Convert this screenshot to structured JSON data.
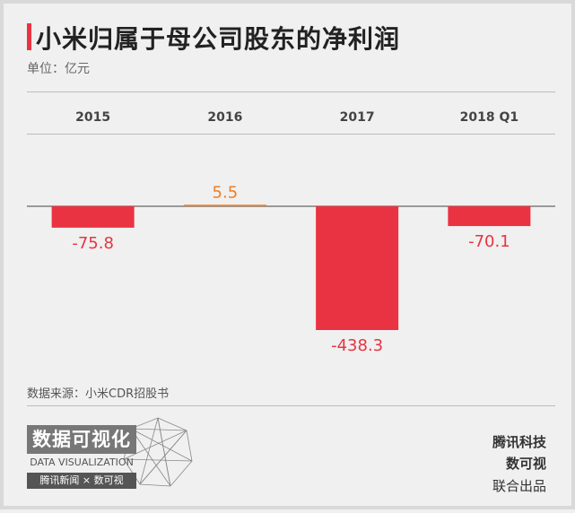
{
  "title": "小米归属于母公司股东的净利润",
  "unit": "单位：亿元",
  "source": "数据来源：小米CDR招股书",
  "brand": {
    "logo_main": "数据可视化",
    "logo_en": "DATA VISUALIZATION",
    "logo_foot": "腾讯新闻 × 数可视",
    "credit_line1": "腾讯科技",
    "credit_line2": "数可视",
    "credit_line3": "联合出品"
  },
  "colors": {
    "negative": "#e93342",
    "positive": "#ef7d22",
    "title_accent": "#e93342"
  },
  "chart_data": {
    "type": "bar",
    "categories": [
      "2015",
      "2016",
      "2017",
      "2018 Q1"
    ],
    "values": [
      -75.8,
      5.5,
      -438.3,
      -70.1
    ],
    "data_labels": [
      "-75.8",
      "5.5",
      "-438.3",
      "-70.1"
    ],
    "title": "小米归属于母公司股东的净利润",
    "ylabel": "单位：亿元",
    "ylim": [
      -438.3,
      5.5
    ],
    "grid": false,
    "legend": "none"
  }
}
